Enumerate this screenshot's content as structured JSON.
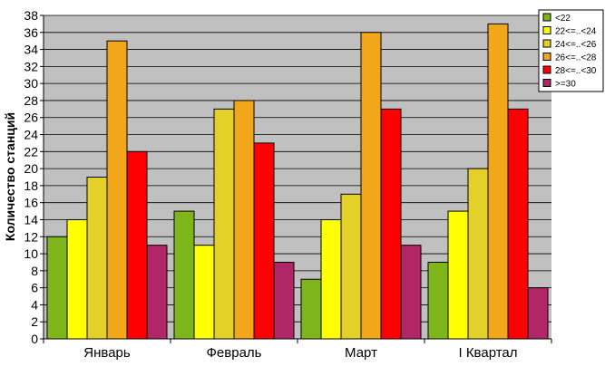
{
  "chart_data": {
    "type": "bar",
    "title": "",
    "xlabel": "",
    "ylabel": "Количество станций",
    "ylim": [
      0,
      38
    ],
    "ytick_step": 2,
    "grid": true,
    "legend_position": "top-right",
    "plot_background": "#c0c0c0",
    "categories": [
      "Январь",
      "Февраль",
      "Март",
      "I Квартал"
    ],
    "series": [
      {
        "name": "<22",
        "color": "#7db51b",
        "values": [
          12,
          15,
          7,
          9
        ]
      },
      {
        "name": "22<=..<24",
        "color": "#ffff00",
        "values": [
          14,
          11,
          14,
          15
        ]
      },
      {
        "name": "24<=..<26",
        "color": "#e3d12a",
        "values": [
          19,
          27,
          17,
          20
        ]
      },
      {
        "name": "26<=..<28",
        "color": "#f2a619",
        "values": [
          35,
          28,
          36,
          37
        ]
      },
      {
        "name": "28<=..<30",
        "color": "#ff0000",
        "values": [
          22,
          23,
          27,
          27
        ]
      },
      {
        "name": ">=30",
        "color": "#b02666",
        "values": [
          11,
          9,
          11,
          6
        ]
      }
    ]
  }
}
